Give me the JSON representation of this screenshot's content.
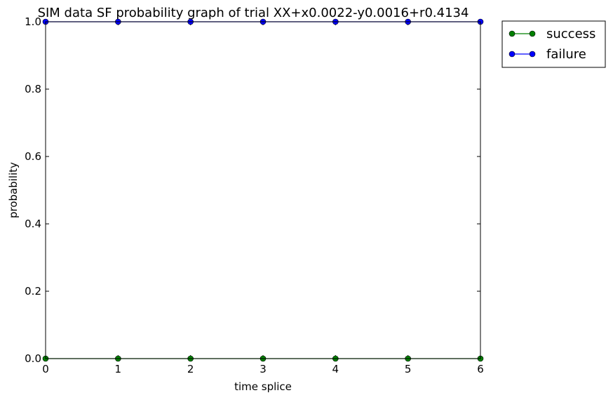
{
  "chart_data": {
    "type": "line",
    "title": "SIM data SF probability graph of trial XX+x0.0022-y0.0016+r0.4134",
    "xlabel": "time splice",
    "ylabel": "probability",
    "xlim": [
      0,
      6
    ],
    "ylim": [
      0.0,
      1.0
    ],
    "xticks": [
      "0",
      "1",
      "2",
      "3",
      "4",
      "5",
      "6"
    ],
    "yticks": [
      "0.0",
      "0.2",
      "0.4",
      "0.6",
      "0.8",
      "1.0"
    ],
    "grid": false,
    "legend_position": "outside-top-right",
    "x": [
      0,
      1,
      2,
      3,
      4,
      5,
      6
    ],
    "series": [
      {
        "name": "success",
        "color": "#008000",
        "values": [
          0,
          0,
          0,
          0,
          0,
          0,
          0
        ]
      },
      {
        "name": "failure",
        "color": "#0000ff",
        "values": [
          1,
          1,
          1,
          1,
          1,
          1,
          1
        ]
      }
    ]
  }
}
